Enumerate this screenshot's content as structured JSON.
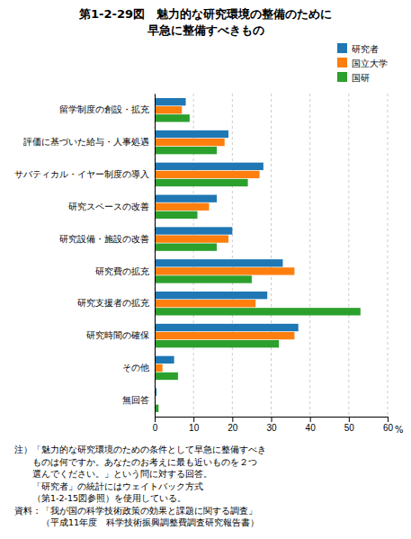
{
  "chart_data": {
    "type": "bar",
    "orientation": "horizontal",
    "title": "第1-2-29図　魅力的な研究環境の整備のために",
    "subtitle": "早急に整備すべきもの",
    "categories": [
      "留学制度の創設・拡充",
      "評価に基づいた給与・人事処遇",
      "サバティカル・イヤー制度の導入",
      "研究スペースの改善",
      "研究設備・施設の改善",
      "研究費の拡充",
      "研究支援者の拡充",
      "研究時間の確保",
      "その他",
      "無回答"
    ],
    "series": [
      {
        "name": "研究者",
        "values": [
          8,
          19,
          28,
          16,
          20,
          33,
          29,
          37,
          5,
          0.5
        ]
      },
      {
        "name": "国立大学",
        "values": [
          7,
          18,
          27,
          14,
          19,
          36,
          26,
          36,
          2,
          0
        ]
      },
      {
        "name": "国研",
        "values": [
          9,
          16,
          24,
          11,
          16,
          25,
          53,
          32,
          6,
          1
        ]
      }
    ],
    "xlim": [
      0,
      60
    ],
    "xticks": [
      0,
      10,
      20,
      30,
      40,
      50,
      60
    ],
    "xlabel": "%",
    "grid": true,
    "legend": "upper right",
    "annotations": [
      "注）「魅力的な研究環境のための条件として早急に整備すべき",
      "　　ものは何ですか。あなたのお考えに最も近いものを２つ",
      "　　選んでください。」という問に対する回答。",
      "　　「研究者」の統計にはウェイトバック方式",
      "　　（第1-2-15図参照）を使用している。",
      "資料：「我が国の科学技術政策の効果と課題に関する調査」",
      "　　　（平成11年度　科学技術振興調整費調査研究報告書）"
    ]
  }
}
